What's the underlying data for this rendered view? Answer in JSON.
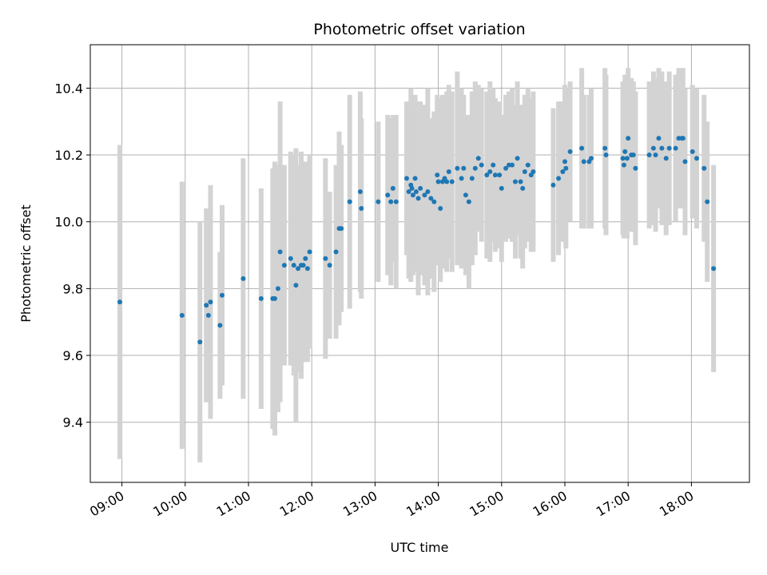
{
  "chart_data": {
    "type": "scatter",
    "title": "Photometric offset variation",
    "xlabel": "UTC time",
    "ylabel": "Photometric offset",
    "x_tick_labels": [
      "09:00",
      "10:00",
      "11:00",
      "12:00",
      "13:00",
      "14:00",
      "15:00",
      "16:00",
      "17:00",
      "18:00"
    ],
    "y_tick_labels": [
      "9.4",
      "9.6",
      "9.8",
      "10.0",
      "10.2",
      "10.4"
    ],
    "y_ticks": [
      9.4,
      9.6,
      9.8,
      10.0,
      10.2,
      10.4
    ],
    "xlim": [
      "08:30",
      "18:55"
    ],
    "ylim": [
      9.22,
      10.53
    ],
    "grid": true,
    "colors": {
      "point": "#1f77b4",
      "errorbar": "#d3d3d3",
      "grid": "#b0b0b0"
    },
    "series": [
      {
        "x": [
          "08:58",
          "09:57",
          "10:14",
          "10:20",
          "10:22",
          "10:24",
          "10:33",
          "10:35",
          "10:55",
          "11:12",
          "11:23",
          "11:25",
          "11:28",
          "11:30",
          "11:34",
          "11:40",
          "11:43",
          "11:45",
          "11:47",
          "11:50",
          "11:52",
          "11:54",
          "11:56",
          "11:58",
          "12:13",
          "12:17",
          "12:23",
          "12:26",
          "12:28",
          "12:36",
          "12:46",
          "12:47",
          "13:03",
          "13:12",
          "13:15",
          "13:17",
          "13:20",
          "13:30",
          "13:32",
          "13:34",
          "13:35",
          "13:36",
          "13:38",
          "13:39",
          "13:41",
          "13:43",
          "13:47",
          "13:50",
          "13:53",
          "13:56",
          "13:59",
          "14:00",
          "14:02",
          "14:04",
          "14:06",
          "14:08",
          "14:10",
          "14:13",
          "14:18",
          "14:22",
          "14:24",
          "14:26",
          "14:29",
          "14:32",
          "14:35",
          "14:38",
          "14:41",
          "14:46",
          "14:49",
          "14:52",
          "14:54",
          "14:58",
          "15:00",
          "15:04",
          "15:07",
          "15:10",
          "15:13",
          "15:15",
          "15:18",
          "15:20",
          "15:22",
          "15:25",
          "15:28",
          "15:30",
          "15:49",
          "15:54",
          "15:58",
          "16:00",
          "16:01",
          "16:05",
          "16:16",
          "16:18",
          "16:23",
          "16:25",
          "16:38",
          "16:39",
          "16:55",
          "16:56",
          "16:57",
          "16:59",
          "17:00",
          "17:03",
          "17:05",
          "17:07",
          "17:20",
          "17:24",
          "17:26",
          "17:29",
          "17:32",
          "17:36",
          "17:39",
          "17:45",
          "17:48",
          "17:51",
          "17:52",
          "17:54",
          "18:01",
          "18:05",
          "18:12",
          "18:15",
          "18:21"
        ],
        "y": [
          9.76,
          9.72,
          9.64,
          9.75,
          9.72,
          9.76,
          9.69,
          9.78,
          9.83,
          9.77,
          9.77,
          9.77,
          9.8,
          9.91,
          9.87,
          9.89,
          9.87,
          9.81,
          9.86,
          9.87,
          9.87,
          9.89,
          9.86,
          9.91,
          9.89,
          9.87,
          9.91,
          9.98,
          9.98,
          10.06,
          10.09,
          10.04,
          10.06,
          10.08,
          10.06,
          10.1,
          10.06,
          10.13,
          10.09,
          10.11,
          10.1,
          10.08,
          10.13,
          10.09,
          10.07,
          10.1,
          10.08,
          10.09,
          10.07,
          10.06,
          10.14,
          10.12,
          10.04,
          10.12,
          10.13,
          10.12,
          10.15,
          10.12,
          10.16,
          10.13,
          10.16,
          10.08,
          10.06,
          10.13,
          10.16,
          10.19,
          10.17,
          10.14,
          10.15,
          10.17,
          10.14,
          10.14,
          10.1,
          10.16,
          10.17,
          10.17,
          10.12,
          10.19,
          10.12,
          10.1,
          10.15,
          10.17,
          10.14,
          10.15,
          10.11,
          10.13,
          10.15,
          10.18,
          10.16,
          10.21,
          10.22,
          10.18,
          10.18,
          10.19,
          10.22,
          10.2,
          10.19,
          10.17,
          10.21,
          10.19,
          10.25,
          10.2,
          10.2,
          10.16,
          10.2,
          10.22,
          10.2,
          10.25,
          10.22,
          10.19,
          10.22,
          10.22,
          10.25,
          10.25,
          10.25,
          10.18,
          10.21,
          10.19,
          10.16,
          10.06,
          9.86
        ],
        "err": [
          0.47,
          0.4,
          0.36,
          0.29,
          0.22,
          0.35,
          0.22,
          0.27,
          0.36,
          0.33,
          0.39,
          0.41,
          0.37,
          0.45,
          0.3,
          0.32,
          0.33,
          0.41,
          0.31,
          0.34,
          0.29,
          0.29,
          0.28,
          0.29,
          0.3,
          0.22,
          0.26,
          0.29,
          0.25,
          0.32,
          0.3,
          0.27,
          0.24,
          0.24,
          0.25,
          0.22,
          0.26,
          0.23,
          0.26,
          0.29,
          0.23,
          0.24,
          0.25,
          0.24,
          0.29,
          0.26,
          0.27,
          0.31,
          0.24,
          0.27,
          0.24,
          0.25,
          0.22,
          0.26,
          0.23,
          0.27,
          0.26,
          0.27,
          0.29,
          0.27,
          0.22,
          0.24,
          0.26,
          0.26,
          0.26,
          0.22,
          0.23,
          0.25,
          0.27,
          0.23,
          0.23,
          0.22,
          0.22,
          0.22,
          0.22,
          0.23,
          0.23,
          0.23,
          0.23,
          0.24,
          0.23,
          0.23,
          0.23,
          0.24,
          0.23,
          0.23,
          0.21,
          0.23,
          0.24,
          0.21,
          0.24,
          0.2,
          0.2,
          0.21,
          0.24,
          0.24,
          0.23,
          0.22,
          0.23,
          0.24,
          0.21,
          0.23,
          0.22,
          0.23,
          0.22,
          0.23,
          0.23,
          0.21,
          0.23,
          0.23,
          0.23,
          0.22,
          0.21,
          0.21,
          0.21,
          0.22,
          0.2,
          0.21,
          0.22,
          0.24,
          0.31
        ]
      }
    ]
  }
}
